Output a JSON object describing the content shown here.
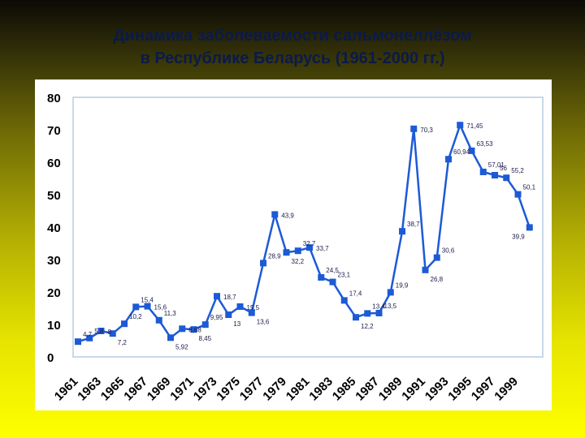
{
  "title_line1": "Динамика заболеваемости сальмонеллёзом",
  "title_line2": "в Республике Беларусь (1961-2000 гг.)",
  "colors": {
    "series": "#1c5ad6",
    "label": "#1a1a4a",
    "frame": "#c8d8ea",
    "title": "#0b1a4a"
  },
  "chart_data": {
    "type": "line",
    "title": "Динамика заболеваемости сальмонеллёзом в Республике Беларусь (1961-2000 гг.)",
    "ylim": [
      0,
      80
    ],
    "yticks": [
      "0",
      "10",
      "20",
      "30",
      "40",
      "50",
      "60",
      "70",
      "80"
    ],
    "xticks": [
      "1961",
      "1963",
      "1965",
      "1967",
      "1969",
      "1971",
      "1973",
      "1975",
      "1977",
      "1979",
      "1981",
      "1983",
      "1985",
      "1987",
      "1989",
      "1991",
      "1993",
      "1995",
      "1997",
      "1999"
    ],
    "grid": false,
    "legend": "none",
    "x": [
      1961,
      1962,
      1963,
      1964,
      1965,
      1966,
      1967,
      1968,
      1969,
      1970,
      1971,
      1972,
      1973,
      1974,
      1975,
      1976,
      1977,
      1978,
      1979,
      1980,
      1981,
      1982,
      1983,
      1984,
      1985,
      1986,
      1987,
      1988,
      1989,
      1990,
      1991,
      1992,
      1993,
      1994,
      1995,
      1996,
      1997,
      1998,
      1999,
      2000
    ],
    "values": [
      4.7,
      5.8,
      8,
      7.2,
      10.2,
      15.4,
      15.6,
      11.3,
      5.92,
      8.68,
      8.45,
      9.95,
      18.7,
      13,
      15.5,
      13.6,
      28.9,
      43.9,
      32.2,
      32.7,
      33.7,
      24.5,
      23.1,
      17.4,
      12.2,
      13.4,
      13.5,
      19.9,
      38.7,
      70.3,
      26.8,
      30.6,
      60.94,
      71.45,
      63.53,
      57.01,
      56,
      55.2,
      50.1,
      39.9
    ],
    "labels": [
      "4,7",
      "5,8",
      "8",
      "7,2",
      "10,2",
      "15,4",
      "15,6",
      "11,3",
      "5,92",
      "8,68",
      "8,45",
      "9,95",
      "18,7",
      "13",
      "15,5",
      "13,6",
      "28,9",
      "43,9",
      "32,2",
      "32,7",
      "33,7",
      "24,5",
      "23,1",
      "17,4",
      "12,2",
      "13,4",
      "13,5",
      "19,9",
      "38,7",
      "70,3",
      "26,8",
      "30,6",
      "60,94",
      "71,45",
      "63,53",
      "57,01",
      "56",
      "55,2",
      "50,1",
      "39,9"
    ]
  }
}
